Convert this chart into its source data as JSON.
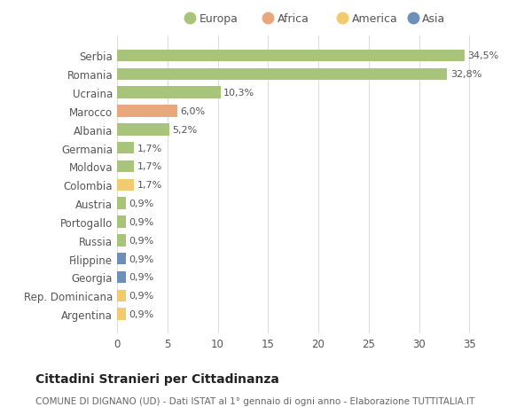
{
  "categories": [
    "Argentina",
    "Rep. Dominicana",
    "Georgia",
    "Filippine",
    "Russia",
    "Portogallo",
    "Austria",
    "Colombia",
    "Moldova",
    "Germania",
    "Albania",
    "Marocco",
    "Ucraina",
    "Romania",
    "Serbia"
  ],
  "values": [
    0.9,
    0.9,
    0.9,
    0.9,
    0.9,
    0.9,
    0.9,
    1.7,
    1.7,
    1.7,
    5.2,
    6.0,
    10.3,
    32.8,
    34.5
  ],
  "labels": [
    "0,9%",
    "0,9%",
    "0,9%",
    "0,9%",
    "0,9%",
    "0,9%",
    "0,9%",
    "1,7%",
    "1,7%",
    "1,7%",
    "5,2%",
    "6,0%",
    "10,3%",
    "32,8%",
    "34,5%"
  ],
  "colors": [
    "#f2cb6e",
    "#f2cb6e",
    "#6e8fba",
    "#6e8fba",
    "#a8c47a",
    "#a8c47a",
    "#a8c47a",
    "#f2cb6e",
    "#a8c47a",
    "#a8c47a",
    "#a8c47a",
    "#e8a87c",
    "#a8c47a",
    "#a8c47a",
    "#a8c47a"
  ],
  "legend_labels": [
    "Europa",
    "Africa",
    "America",
    "Asia"
  ],
  "legend_colors": [
    "#a8c47a",
    "#e8a87c",
    "#f2cb6e",
    "#6e8fba"
  ],
  "title": "Cittadini Stranieri per Cittadinanza",
  "subtitle": "COMUNE DI DIGNANO (UD) - Dati ISTAT al 1° gennaio di ogni anno - Elaborazione TUTTITALIA.IT",
  "xlim": [
    0,
    37
  ],
  "xticks": [
    0,
    5,
    10,
    15,
    20,
    25,
    30,
    35
  ],
  "bg_color": "#ffffff",
  "plot_bg_color": "#ffffff",
  "grid_color": "#dddddd",
  "bar_height": 0.65,
  "figsize": [
    6.0,
    4.6
  ],
  "dpi": 100
}
